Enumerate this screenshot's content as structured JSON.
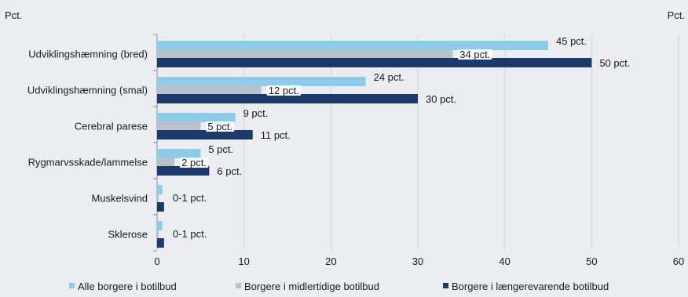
{
  "chart_data": {
    "type": "bar",
    "orientation": "horizontal",
    "ylabel_left": "Pct.",
    "ylabel_right": "Pct.",
    "categories": [
      "Udviklingshæmning (bred)",
      "Udviklingshæmning (smal)",
      "Cerebral parese",
      "Rygmarvsskade/lammelse",
      "Muskelsvind",
      "Sklerose"
    ],
    "series": [
      {
        "name": "Alle borgere i botilbud",
        "values": [
          45,
          24,
          9,
          5,
          0.6,
          0.6
        ],
        "color": "#8ccbea"
      },
      {
        "name": "Borgere i midlertidige botilbud",
        "values": [
          34,
          12,
          5,
          2,
          0.2,
          0.2
        ],
        "color": "#b7c3c9"
      },
      {
        "name": "Borgere i længerevarende botilbud",
        "values": [
          50,
          30,
          11,
          6,
          0.8,
          0.8
        ],
        "color": "#1b3a6b"
      }
    ],
    "data_labels": [
      [
        "45 pct.",
        "34 pct.",
        "50 pct."
      ],
      [
        "24 pct.",
        "12 pct.",
        "30 pct."
      ],
      [
        "9 pct.",
        "5 pct.",
        "11 pct."
      ],
      [
        "5 pct.",
        "2 pct.",
        "6 pct."
      ],
      [
        "0-1 pct."
      ],
      [
        "0-1 pct."
      ]
    ],
    "x_ticks": [
      "0",
      "10",
      "20",
      "30",
      "40",
      "50",
      "60"
    ],
    "xlim": [
      0,
      60
    ],
    "grid": true,
    "legend_position": "bottom"
  }
}
